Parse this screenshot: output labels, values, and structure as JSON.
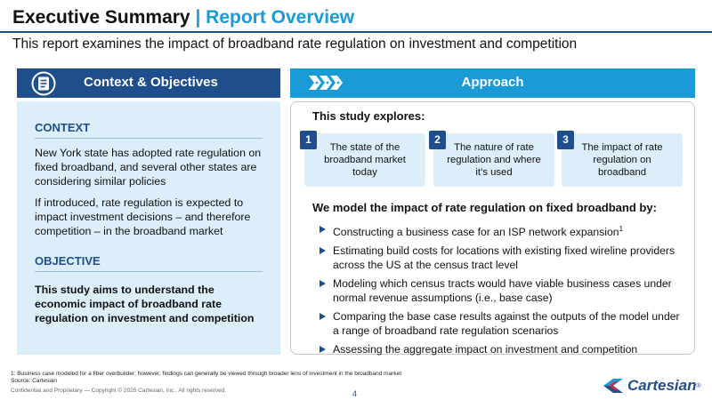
{
  "header": {
    "title_main": "Executive Summary",
    "title_sep": " | ",
    "title_accent": "Report Overview",
    "subtitle": "This report examines the impact of broadband rate regulation on investment and competition"
  },
  "left": {
    "header_label": "Context & Objectives",
    "header_icon": "list-document-icon",
    "context_title": "CONTEXT",
    "context_paragraphs": [
      "New York state has adopted rate regulation on fixed broadband, and several other states are considering similar policies",
      "If introduced, rate regulation is expected to impact investment decisions – and therefore competition – in the broadband market"
    ],
    "objective_title": "OBJECTIVE",
    "objective_text": "This study aims to understand the economic impact of broadband rate regulation on investment and competition"
  },
  "right": {
    "header_label": "Approach",
    "header_icon": "chevron-arrows-icon",
    "explores_title": "This study explores:",
    "boxes": [
      {
        "num": "1",
        "text": "The state of the broadband market today"
      },
      {
        "num": "2",
        "text": "The nature of rate regulation and where it’s used"
      },
      {
        "num": "3",
        "text": "The impact of rate regulation on broadband"
      }
    ],
    "model_title": "We model the impact of rate regulation on fixed broadband by:",
    "bullets": [
      "Constructing a business case for an ISP network expansion",
      "Estimating build costs for locations with existing fixed wireline providers across the US at the census tract level",
      "Modeling which census tracts would have viable business cases under normal revenue assumptions (i.e., base case)",
      "Comparing the base case results against the outputs of the model under a range of broadband rate regulation scenarios",
      "Assessing the aggregate impact on investment and competition"
    ],
    "bullet_footnote_mark": "1"
  },
  "footer": {
    "footnote": "1: Business case modeled for a fiber overbuilder; however, findings can generally be viewed through broader lens of investment in the broadband market",
    "source": "Source: Cartesian",
    "copyright": "Confidential and Proprietary — Copyright © 2025 Cartesian, Inc.. All rights reserved.",
    "page_number": "4",
    "logo_text": "Cartesian",
    "logo_superscript": "®"
  },
  "colors": {
    "navy": "#1f4e8c",
    "accent_blue": "#1a9ad6",
    "light_panel": "#dbeefa"
  }
}
